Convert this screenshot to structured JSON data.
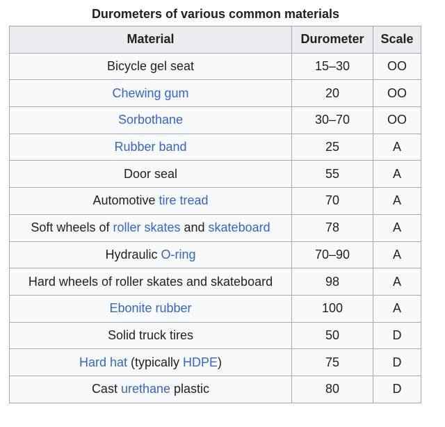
{
  "caption": "Durometers of various common materials",
  "headers": {
    "material": "Material",
    "durometer": "Durometer",
    "scale": "Scale"
  },
  "rows": [
    {
      "material": [
        {
          "text": "Bicycle gel seat"
        }
      ],
      "durometer": "15–30",
      "scale": "OO"
    },
    {
      "material": [
        {
          "text": "Chewing gum",
          "link": true
        }
      ],
      "durometer": "20",
      "scale": "OO"
    },
    {
      "material": [
        {
          "text": "Sorbothane",
          "link": true
        }
      ],
      "durometer": "30–70",
      "scale": "OO"
    },
    {
      "material": [
        {
          "text": "Rubber band",
          "link": true
        }
      ],
      "durometer": "25",
      "scale": "A"
    },
    {
      "material": [
        {
          "text": "Door seal"
        }
      ],
      "durometer": "55",
      "scale": "A"
    },
    {
      "material": [
        {
          "text": "Automotive "
        },
        {
          "text": "tire tread",
          "link": true
        }
      ],
      "durometer": "70",
      "scale": "A"
    },
    {
      "material": [
        {
          "text": "Soft wheels of "
        },
        {
          "text": "roller skates",
          "link": true
        },
        {
          "text": " and "
        },
        {
          "text": "skateboard",
          "link": true
        }
      ],
      "durometer": "78",
      "scale": "A"
    },
    {
      "material": [
        {
          "text": "Hydraulic "
        },
        {
          "text": "O-ring",
          "link": true
        }
      ],
      "durometer": "70–90",
      "scale": "A"
    },
    {
      "material": [
        {
          "text": "Hard wheels of roller skates and skateboard"
        }
      ],
      "durometer": "98",
      "scale": "A"
    },
    {
      "material": [
        {
          "text": "Ebonite rubber",
          "link": true
        }
      ],
      "durometer": "100",
      "scale": "A"
    },
    {
      "material": [
        {
          "text": "Solid truck tires"
        }
      ],
      "durometer": "50",
      "scale": "D"
    },
    {
      "material": [
        {
          "text": "Hard hat",
          "link": true
        },
        {
          "text": " (typically "
        },
        {
          "text": "HDPE",
          "link": true
        },
        {
          "text": ")"
        }
      ],
      "durometer": "75",
      "scale": "D"
    },
    {
      "material": [
        {
          "text": "Cast "
        },
        {
          "text": "urethane",
          "link": true
        },
        {
          "text": " plastic"
        }
      ],
      "durometer": "80",
      "scale": "D"
    }
  ]
}
